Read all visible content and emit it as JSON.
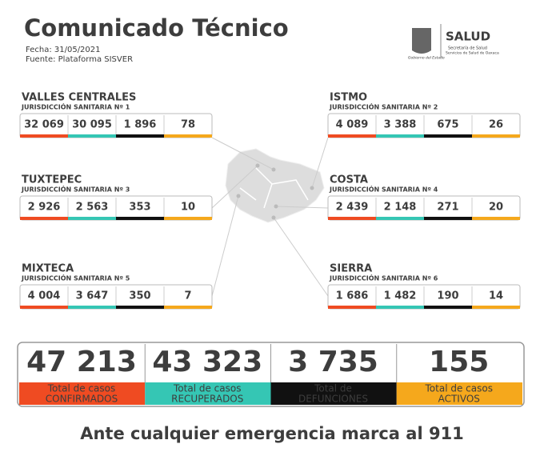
{
  "header": {
    "title": "Comunicado Técnico",
    "date": "Fecha: 31/05/2021",
    "source": "Fuente: Plataforma SISVER"
  },
  "logo": {
    "name": "SALUD",
    "line1": "Secretaría de Salud",
    "line2": "Servicios de Salud de Oaxaca",
    "government": "Gobierno del Estado"
  },
  "regions": [
    {
      "name": "VALLES CENTRALES",
      "subtitle": "JURISDICCIÓN SANITARIA Nº 1",
      "values": [
        "32 069",
        "30 095",
        "1 896",
        "78"
      ]
    },
    {
      "name": "ISTMO",
      "subtitle": "JURISDICCIÓN SANITARIA Nº 2",
      "values": [
        "4 089",
        "3 388",
        "675",
        "26"
      ]
    },
    {
      "name": "TUXTEPEC",
      "subtitle": "JURISDICCIÓN SANITARIA Nº 3",
      "values": [
        "2 926",
        "2 563",
        "353",
        "10"
      ]
    },
    {
      "name": "COSTA",
      "subtitle": "JURISDICCIÓN SANITARIA Nº 4",
      "values": [
        "2 439",
        "2 148",
        "271",
        "20"
      ]
    },
    {
      "name": "MIXTECA",
      "subtitle": "JURISDICCIÓN SANITARIA Nº 5",
      "values": [
        "4 004",
        "3 647",
        "350",
        "7"
      ]
    },
    {
      "name": "SIERRA",
      "subtitle": "JURISDICCIÓN SANITARIA Nº 6",
      "values": [
        "1 686",
        "1 482",
        "190",
        "14"
      ]
    }
  ],
  "totals": [
    {
      "value": "47 213",
      "label1": "Total de casos",
      "label2": "CONFIRMADOS"
    },
    {
      "value": "43 323",
      "label1": "Total de casos",
      "label2": "RECUPERADOS"
    },
    {
      "value": "3 735",
      "label1": "Total de",
      "label2": "DEFUNCIONES"
    },
    {
      "value": "155",
      "label1": "Total de casos",
      "label2": "ACTIVOS"
    }
  ],
  "footer": "Ante cualquier emergencia marca al 911"
}
